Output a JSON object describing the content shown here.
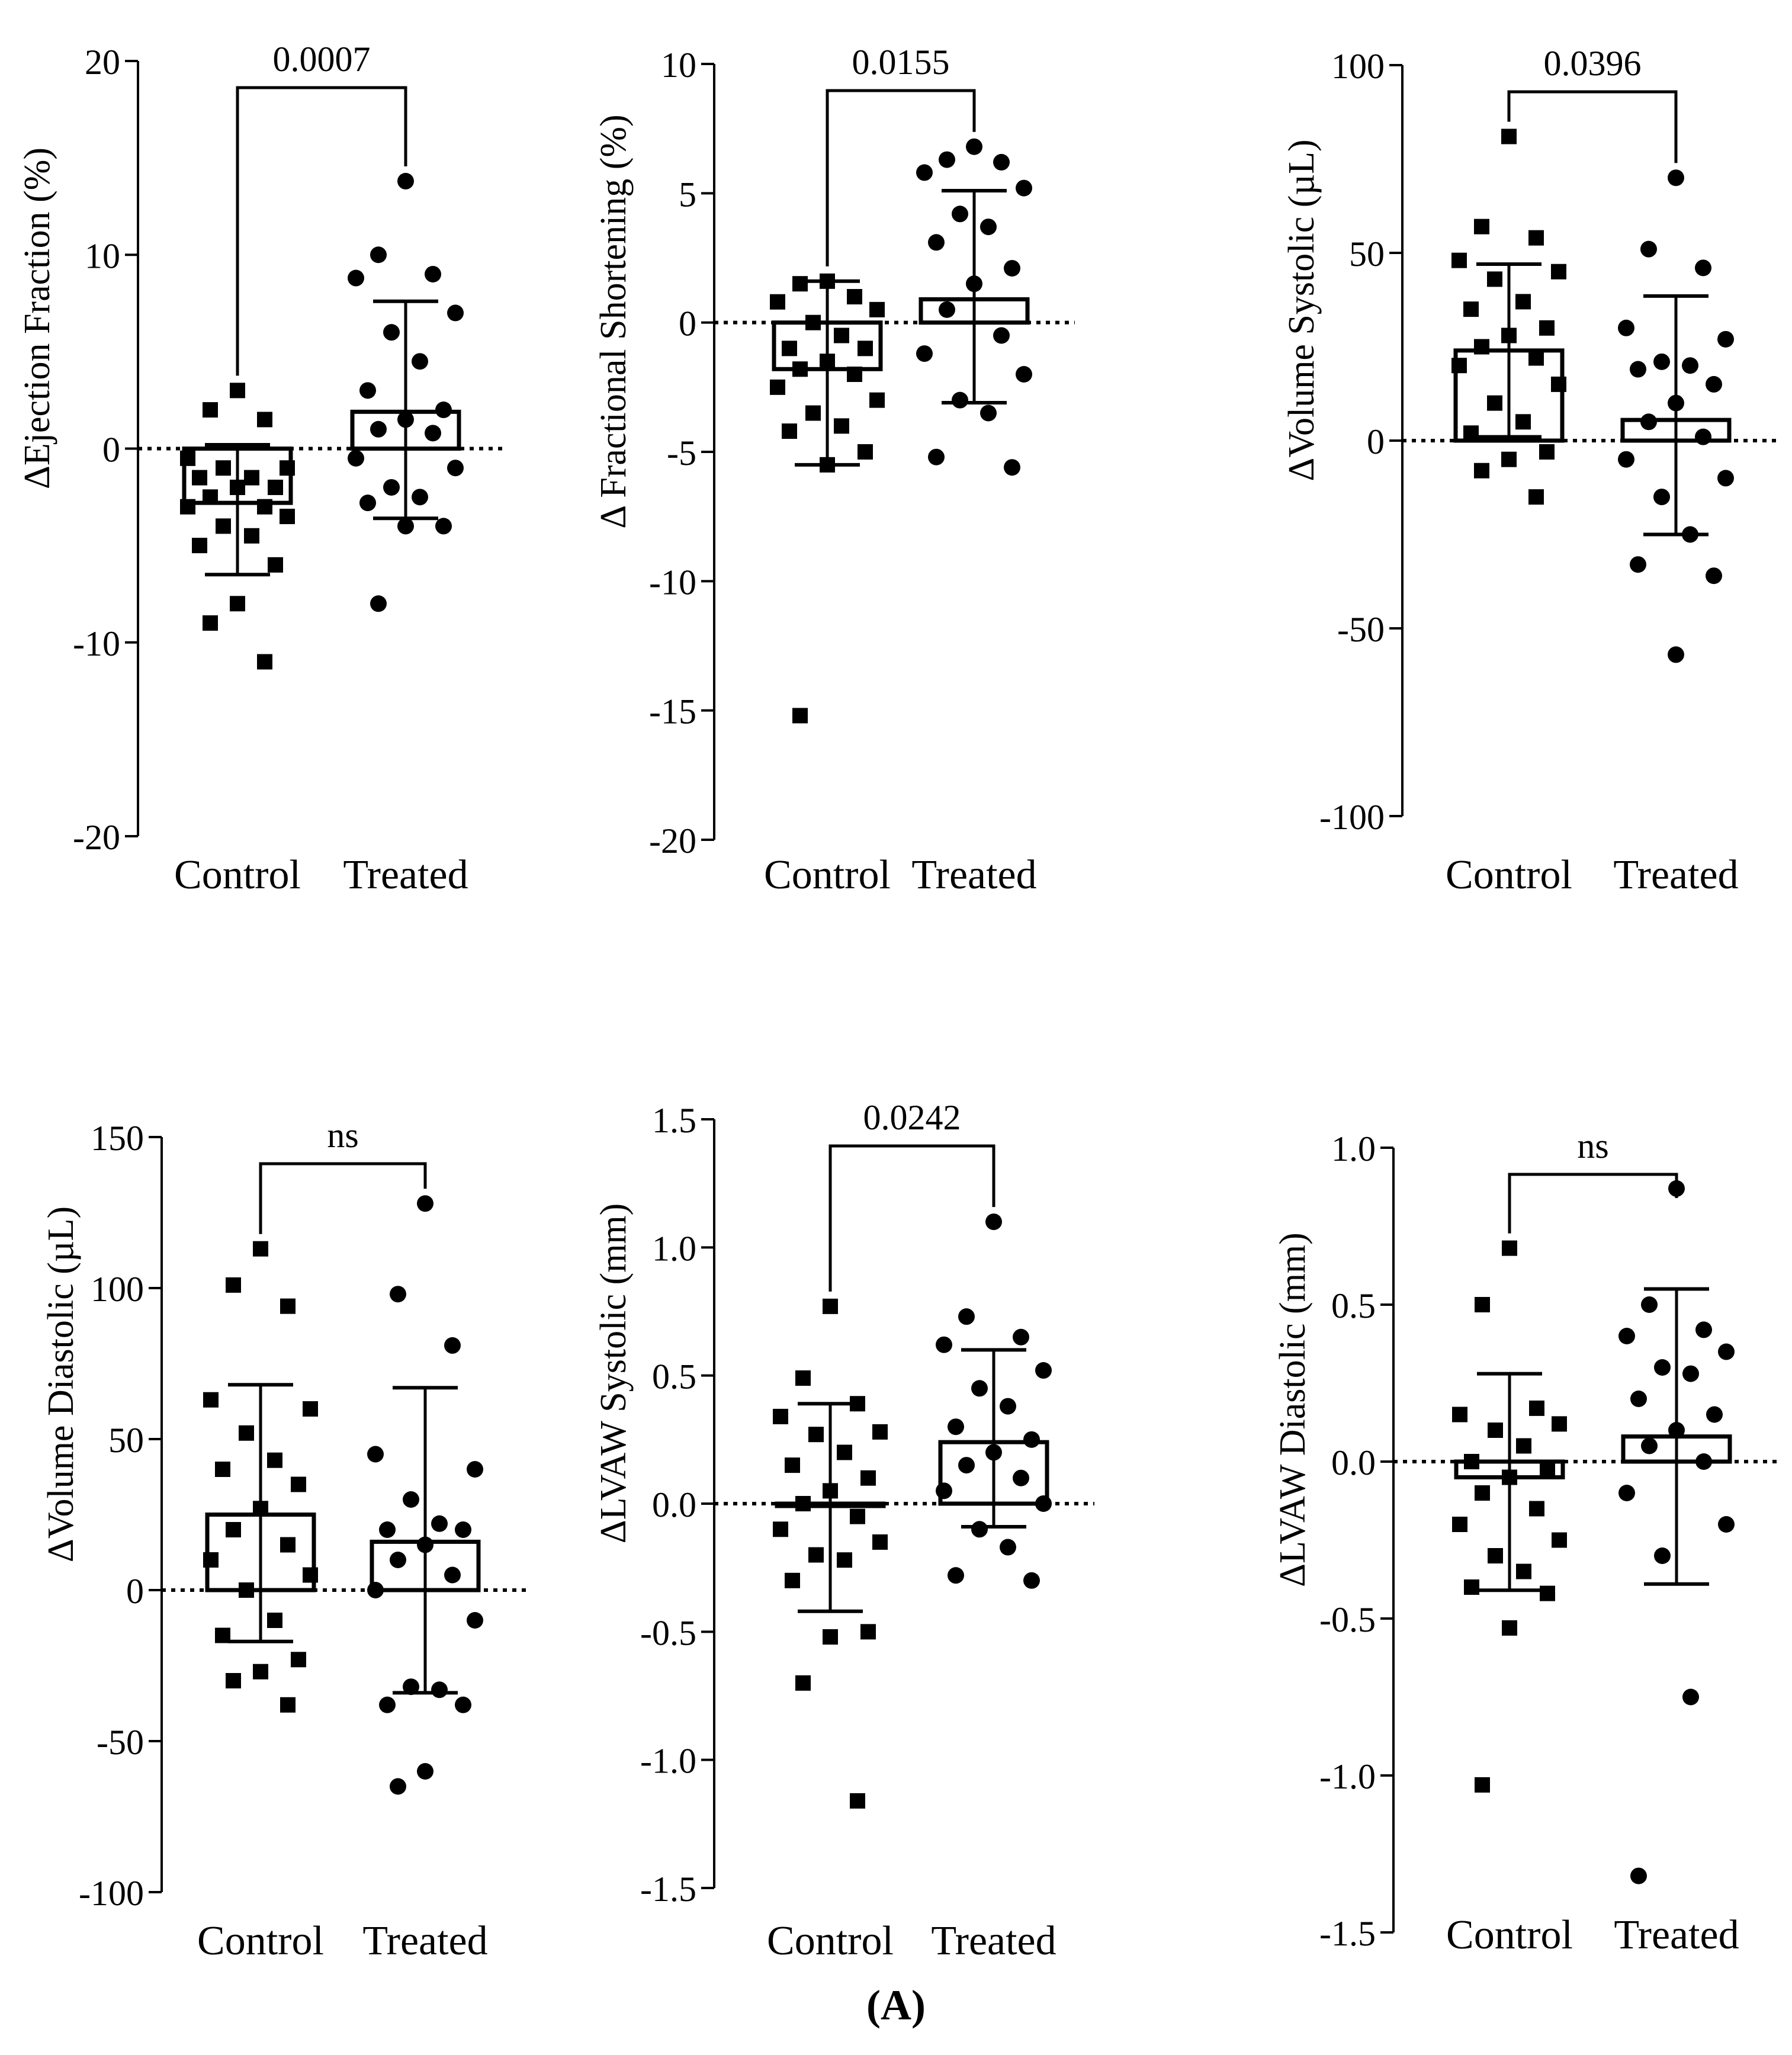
{
  "figure_label": "(A)",
  "colors": {
    "ink": "#000000",
    "background": "#ffffff"
  },
  "chart_data": [
    {
      "id": "ejection_fraction",
      "type": "scatter",
      "ylabel": "ΔEjection Fraction (%)",
      "categories": [
        "Control",
        "Treated"
      ],
      "ylim": [
        -20,
        20
      ],
      "yticks": [
        -20,
        -10,
        0,
        10,
        20
      ],
      "significance": "0.0007",
      "series": [
        {
          "name": "Control",
          "marker": "square",
          "mean": -2.8,
          "sd_low": -6.5,
          "sd_high": 0.2,
          "values": [
            3,
            2,
            1.5,
            -0.5,
            -1,
            -1,
            -1.5,
            -1.5,
            -2,
            -2,
            -2.5,
            -3,
            -3,
            -3.5,
            -4,
            -4.5,
            -5,
            -6,
            -8,
            -9,
            -11
          ]
        },
        {
          "name": "Treated",
          "marker": "circle",
          "mean": 1.9,
          "sd_low": -3.6,
          "sd_high": 7.6,
          "values": [
            13.8,
            10,
            9,
            8.8,
            7,
            6,
            4.5,
            3,
            2,
            1.5,
            1,
            0.8,
            -0.5,
            -1,
            -2,
            -2.5,
            -2.8,
            -4,
            -4,
            -8
          ]
        }
      ]
    },
    {
      "id": "fractional_shortening",
      "type": "scatter",
      "ylabel": "Δ Fractional Shortening (%)",
      "categories": [
        "Control",
        "Treated"
      ],
      "ylim": [
        -20,
        10
      ],
      "yticks": [
        -20,
        -15,
        -10,
        -5,
        0,
        5,
        10
      ],
      "significance": "0.0155",
      "series": [
        {
          "name": "Control",
          "marker": "square",
          "mean": -1.8,
          "sd_low": -5.5,
          "sd_high": 1.6,
          "values": [
            1.6,
            1.5,
            1,
            0.8,
            0.5,
            0,
            -0.5,
            -1,
            -1,
            -1.5,
            -1.8,
            -2,
            -2.5,
            -3,
            -3.5,
            -4,
            -4.2,
            -5,
            -5.5,
            -15.2
          ]
        },
        {
          "name": "Treated",
          "marker": "circle",
          "mean": 0.9,
          "sd_low": -3.1,
          "sd_high": 5.1,
          "values": [
            6.8,
            6.3,
            6.2,
            5.8,
            5.2,
            4.2,
            3.7,
            3.1,
            2.1,
            1.5,
            0.5,
            -0.5,
            -1.2,
            -2,
            -3,
            -3.5,
            -5.2,
            -5.6
          ]
        }
      ]
    },
    {
      "id": "volume_systolic",
      "type": "scatter",
      "ylabel": "ΔVolume Systolic (µL)",
      "categories": [
        "Control",
        "Treated"
      ],
      "ylim": [
        -100,
        100
      ],
      "yticks": [
        -100,
        -50,
        0,
        50,
        100
      ],
      "significance": "0.0396",
      "series": [
        {
          "name": "Control",
          "marker": "square",
          "mean": 24,
          "sd_low": 1,
          "sd_high": 47,
          "values": [
            81,
            57,
            54,
            48,
            45,
            43,
            37,
            35,
            30,
            28,
            25,
            22,
            20,
            15,
            10,
            5,
            2,
            -3,
            -5,
            -8,
            -15
          ]
        },
        {
          "name": "Treated",
          "marker": "circle",
          "mean": 5.5,
          "sd_low": -25,
          "sd_high": 38.5,
          "values": [
            70,
            51,
            46,
            30,
            27,
            21,
            20,
            19,
            15,
            10,
            5,
            1,
            -5,
            -10,
            -15,
            -25,
            -33,
            -36,
            -57
          ]
        }
      ]
    },
    {
      "id": "volume_diastolic",
      "type": "scatter",
      "ylabel": "ΔVolume Diastolic (µL)",
      "categories": [
        "Control",
        "Treated"
      ],
      "ylim": [
        -100,
        150
      ],
      "yticks": [
        -100,
        -50,
        0,
        50,
        100,
        150
      ],
      "significance": "ns",
      "series": [
        {
          "name": "Control",
          "marker": "square",
          "mean": 25,
          "sd_low": -17,
          "sd_high": 68,
          "values": [
            113,
            101,
            94,
            63,
            60,
            52,
            43,
            40,
            35,
            27,
            20,
            15,
            10,
            5,
            0,
            -10,
            -15,
            -23,
            -27,
            -30,
            -38
          ]
        },
        {
          "name": "Treated",
          "marker": "circle",
          "mean": 16,
          "sd_low": -34,
          "sd_high": 67,
          "values": [
            128,
            98,
            81,
            45,
            40,
            30,
            22,
            20,
            20,
            15,
            10,
            5,
            0,
            -10,
            -32,
            -33,
            -38,
            -38,
            -60,
            -65
          ]
        }
      ]
    },
    {
      "id": "lvaw_systolic",
      "type": "scatter",
      "ylabel": "ΔLVAW Systolic (mm)",
      "categories": [
        "Control",
        "Treated"
      ],
      "ylim": [
        -1.5,
        1.5
      ],
      "yticks": [
        -1.5,
        -1.0,
        -0.5,
        0.0,
        0.5,
        1.0,
        1.5
      ],
      "significance": "0.0242",
      "series": [
        {
          "name": "Control",
          "marker": "square",
          "mean": 0.0,
          "sd_low": -0.42,
          "sd_high": 0.39,
          "values": [
            0.77,
            0.49,
            0.39,
            0.34,
            0.28,
            0.27,
            0.2,
            0.15,
            0.1,
            0.05,
            0,
            -0.05,
            -0.1,
            -0.15,
            -0.2,
            -0.22,
            -0.3,
            -0.5,
            -0.52,
            -0.7,
            -1.16
          ]
        },
        {
          "name": "Treated",
          "marker": "circle",
          "mean": 0.24,
          "sd_low": -0.09,
          "sd_high": 0.6,
          "values": [
            1.1,
            0.73,
            0.65,
            0.62,
            0.52,
            0.45,
            0.38,
            0.3,
            0.25,
            0.2,
            0.15,
            0.1,
            0.05,
            0,
            -0.1,
            -0.17,
            -0.28,
            -0.3
          ]
        }
      ]
    },
    {
      "id": "lvaw_diastolic",
      "type": "scatter",
      "ylabel": "ΔLVAW Diastolic (mm)",
      "categories": [
        "Control",
        "Treated"
      ],
      "ylim": [
        -1.5,
        1.0
      ],
      "yticks": [
        -1.5,
        -1.0,
        -0.5,
        0.0,
        0.5,
        1.0
      ],
      "significance": "ns",
      "series": [
        {
          "name": "Control",
          "marker": "square",
          "mean": -0.05,
          "sd_low": -0.41,
          "sd_high": 0.28,
          "values": [
            0.68,
            0.5,
            0.17,
            0.15,
            0.12,
            0.1,
            0.05,
            0,
            -0.02,
            -0.05,
            -0.1,
            -0.15,
            -0.2,
            -0.25,
            -0.3,
            -0.35,
            -0.4,
            -0.42,
            -0.53,
            -1.03
          ]
        },
        {
          "name": "Treated",
          "marker": "circle",
          "mean": 0.08,
          "sd_low": -0.39,
          "sd_high": 0.55,
          "values": [
            0.87,
            0.5,
            0.42,
            0.4,
            0.35,
            0.3,
            0.28,
            0.2,
            0.15,
            0.1,
            0.05,
            0,
            -0.1,
            -0.2,
            -0.3,
            -0.75,
            -1.32
          ]
        }
      ]
    }
  ]
}
